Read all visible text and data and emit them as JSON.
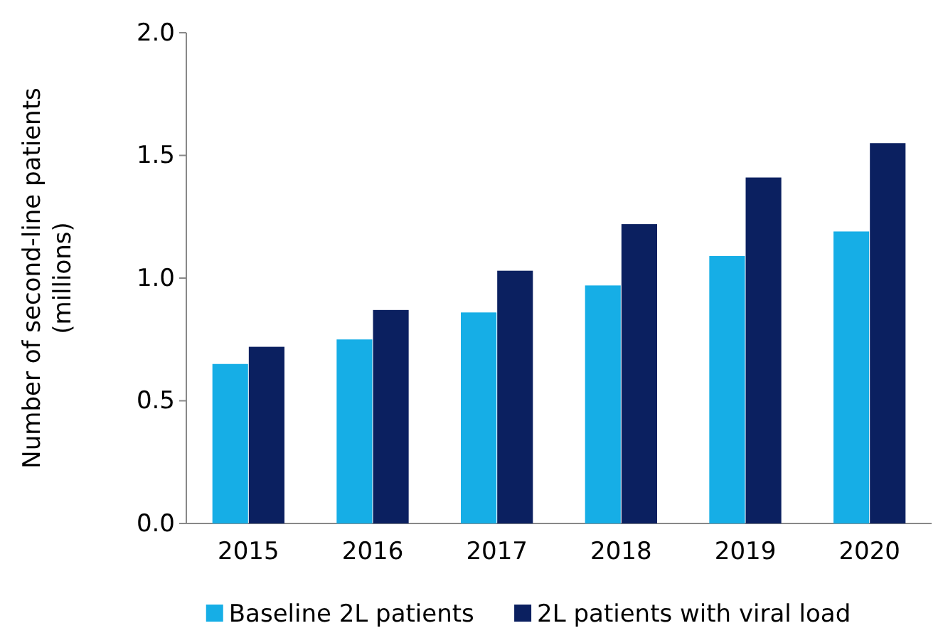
{
  "chart_data": {
    "type": "bar",
    "ylabel": "Number of second-line patients\n(millions)",
    "categories": [
      "2015",
      "2016",
      "2017",
      "2018",
      "2019",
      "2020"
    ],
    "series": [
      {
        "name": "Baseline 2L patients",
        "color": "#16aee6",
        "values": [
          0.65,
          0.75,
          0.86,
          0.97,
          1.09,
          1.19
        ]
      },
      {
        "name": "2L patients with viral load",
        "color": "#0b2060",
        "values": [
          0.72,
          0.87,
          1.03,
          1.22,
          1.41,
          1.55
        ]
      }
    ],
    "ylim": [
      0,
      2.0
    ],
    "yticks": [
      {
        "value": 0,
        "label": "0.0"
      },
      {
        "value": 0.5,
        "label": "0.5"
      },
      {
        "value": 1,
        "label": "1.0"
      },
      {
        "value": 1.5,
        "label": "1.5"
      },
      {
        "value": 2,
        "label": "2.0"
      }
    ],
    "grid": false,
    "legend": "bottom"
  }
}
